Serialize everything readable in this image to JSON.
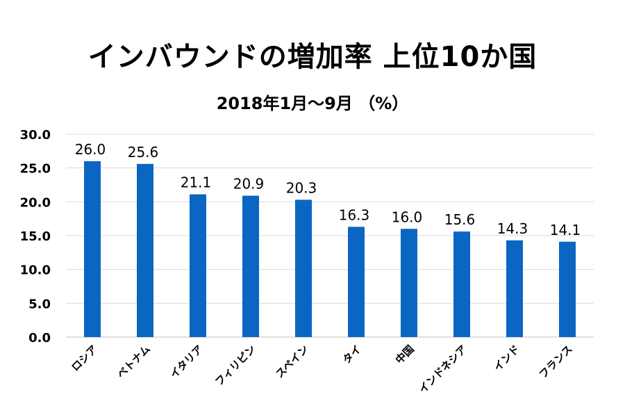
{
  "chart_data": {
    "type": "bar",
    "title": "インバウンドの増加率 上位10か国",
    "subtitle": "2018年1月～9月 （%）",
    "categories": [
      "ロシア",
      "ベトナム",
      "イタリア",
      "フィリピン",
      "スペイン",
      "タイ",
      "中国",
      "インドネシア",
      "インド",
      "フランス"
    ],
    "values": [
      26.0,
      25.6,
      21.1,
      20.9,
      20.3,
      16.3,
      16.0,
      15.6,
      14.3,
      14.1
    ],
    "value_labels": [
      "26.0",
      "25.6",
      "21.1",
      "20.9",
      "20.3",
      "16.3",
      "16.0",
      "15.6",
      "14.3",
      "14.1"
    ],
    "yticks": [
      "0.0",
      "5.0",
      "10.0",
      "15.0",
      "20.0",
      "25.0",
      "30.0"
    ],
    "ylim": [
      0,
      30
    ],
    "grid": true,
    "bar_color": "#0a66c2",
    "grid_color": "#d9d9d9",
    "xlabel": "",
    "ylabel": ""
  }
}
